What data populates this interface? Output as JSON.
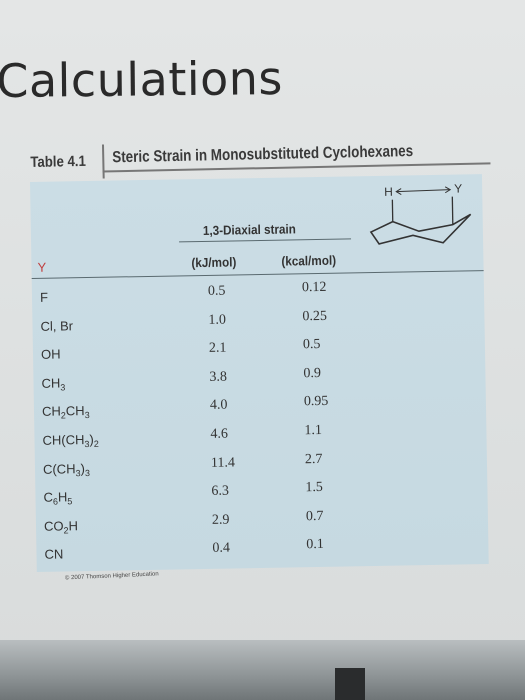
{
  "page_title": "Calculations",
  "table": {
    "number": "Table 4.1",
    "caption": "Steric Strain in Monosubstituted Cyclohexanes",
    "group_header": "1,3-Diaxial strain",
    "col_y": "Y",
    "col_kj": "(kJ/mol)",
    "col_kcal": "(kcal/mol)",
    "diagram": {
      "left_label": "H",
      "right_label": "Y"
    },
    "rows": [
      {
        "y": "F",
        "kj": "0.5",
        "kcal": "0.12"
      },
      {
        "y": "Cl, Br",
        "kj": "1.0",
        "kcal": "0.25"
      },
      {
        "y": "OH",
        "kj": "2.1",
        "kcal": "0.5"
      },
      {
        "y_parts": [
          "CH",
          "3"
        ],
        "kj": "3.8",
        "kcal": "0.9"
      },
      {
        "y_parts": [
          "CH",
          "2",
          "CH",
          "3"
        ],
        "kj": "4.0",
        "kcal": "0.95"
      },
      {
        "y_parts": [
          "CH(CH",
          "3",
          ")",
          "2"
        ],
        "kj": "4.6",
        "kcal": "1.1"
      },
      {
        "y_parts": [
          "C(CH",
          "3",
          ")",
          "3"
        ],
        "kj": "11.4",
        "kcal": "2.7"
      },
      {
        "y_parts": [
          "C",
          "6",
          "H",
          "5"
        ],
        "kj": "6.3",
        "kcal": "1.5"
      },
      {
        "y_parts": [
          "CO",
          "2",
          "H"
        ],
        "kj": "2.9",
        "kcal": "0.7"
      },
      {
        "y": "CN",
        "kj": "0.4",
        "kcal": "0.1"
      }
    ],
    "copyright": "© 2007 Thomson Higher Education"
  }
}
